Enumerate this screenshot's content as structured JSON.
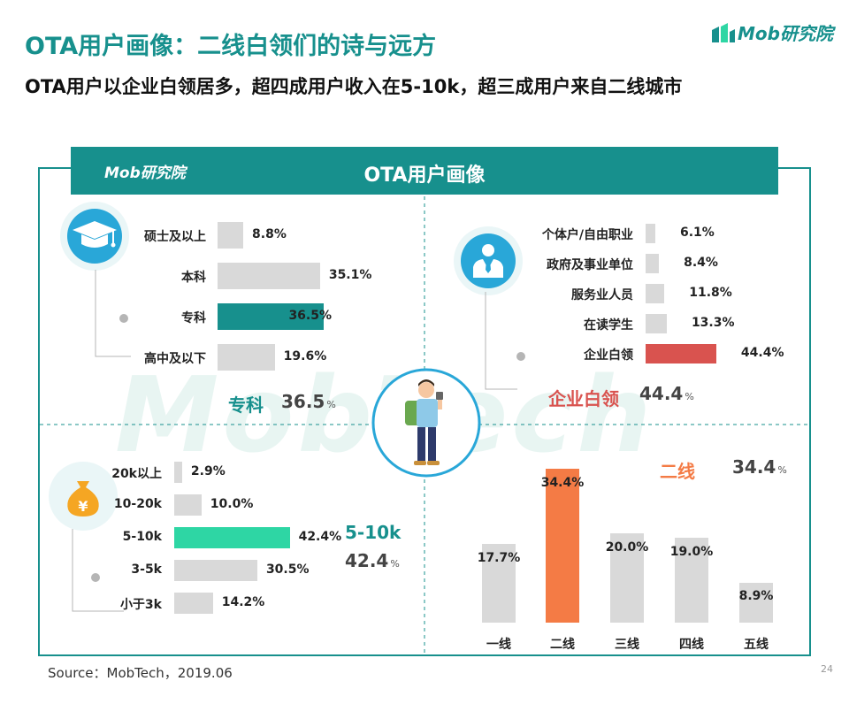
{
  "header": {
    "title": "OTA用户画像：二线白领们的诗与远方",
    "subtitle": "OTA用户以企业白领居多，超四成用户收入在5-10k，超三成用户来自二线城市",
    "brand": "Mob研究院"
  },
  "panel": {
    "brand": "Mob研究院",
    "title": "OTA用户画像"
  },
  "watermark": "MobTech",
  "colors": {
    "teal": "#17908d",
    "mint": "#2ed6a4",
    "red": "#d9534f",
    "orange": "#f47b45",
    "grey_bar": "#d9d9d9"
  },
  "icons": {
    "education": "graduation-cap-icon",
    "occupation": "businessman-icon",
    "income": "money-bag-icon",
    "center": "traveler-icon"
  },
  "chart_data": [
    {
      "type": "bar",
      "orientation": "horizontal",
      "subject": "education",
      "categories": [
        "硕士及以上",
        "本科",
        "专科",
        "高中及以下"
      ],
      "labels": [
        "8.8%",
        "35.1%",
        "36.5%",
        "19.6%"
      ],
      "values": [
        8.8,
        35.1,
        36.5,
        19.6
      ],
      "highlight_index": 2,
      "highlight": {
        "label": "专科",
        "value": "36.5",
        "unit": "%"
      }
    },
    {
      "type": "bar",
      "orientation": "horizontal",
      "subject": "occupation",
      "categories": [
        "个体户/自由职业",
        "政府及事业单位",
        "服务业人员",
        "在读学生",
        "企业白领"
      ],
      "labels": [
        "6.1%",
        "8.4%",
        "11.8%",
        "13.3%",
        "44.4%"
      ],
      "values": [
        6.1,
        8.4,
        11.8,
        13.3,
        44.4
      ],
      "highlight_index": 4,
      "highlight": {
        "label": "企业白领",
        "value": "44.4",
        "unit": "%"
      }
    },
    {
      "type": "bar",
      "orientation": "horizontal",
      "subject": "income",
      "categories": [
        "20k以上",
        "10-20k",
        "5-10k",
        "3-5k",
        "小于3k"
      ],
      "labels": [
        "2.9%",
        "10.0%",
        "42.4%",
        "30.5%",
        "14.2%"
      ],
      "values": [
        2.9,
        10.0,
        42.4,
        30.5,
        14.2
      ],
      "highlight_index": 2,
      "highlight": {
        "label": "5-10k",
        "value": "42.4",
        "unit": "%"
      }
    },
    {
      "type": "bar",
      "orientation": "vertical",
      "subject": "city_tier",
      "categories": [
        "一线",
        "二线",
        "三线",
        "四线",
        "五线"
      ],
      "labels": [
        "17.7%",
        "34.4%",
        "20.0%",
        "19.0%",
        "8.9%"
      ],
      "values": [
        17.7,
        34.4,
        20.0,
        19.0,
        8.9
      ],
      "highlight_index": 1,
      "highlight": {
        "label": "二线",
        "value": "34.4",
        "unit": "%"
      }
    }
  ],
  "footer": {
    "source": "Source：MobTech，2019.06",
    "page": "24"
  }
}
